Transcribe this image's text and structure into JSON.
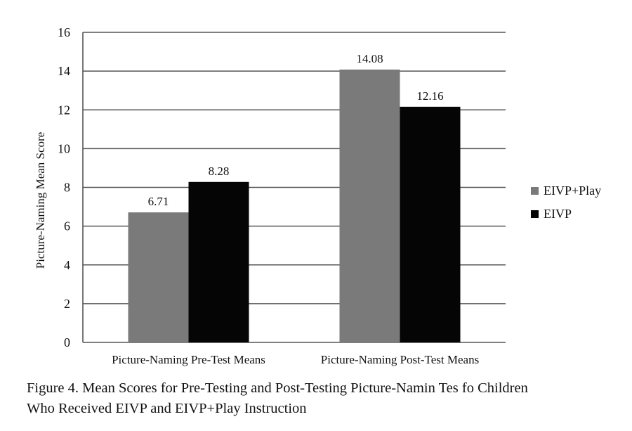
{
  "chart_data": {
    "type": "bar",
    "ylabel": "Picture-Naming Mean Score",
    "ylim": [
      0,
      16
    ],
    "yticks": [
      0,
      2,
      4,
      6,
      8,
      10,
      12,
      14,
      16
    ],
    "categories": [
      "Picture-Naming Pre-Test Means",
      "Picture-Naming Post-Test Means"
    ],
    "series": [
      {
        "name": "EIVP+Play",
        "values": [
          6.71,
          14.08
        ],
        "labels": [
          "6.71",
          "14.08"
        ],
        "color": "#7a7a7a"
      },
      {
        "name": "EIVP",
        "values": [
          8.28,
          12.16
        ],
        "labels": [
          "8.28",
          "12.16"
        ],
        "color": "#050505"
      }
    ],
    "grid": true,
    "legend_position": "right"
  },
  "caption": {
    "line1": "Figure 4. Mean Scores for Pre-Testing and Post-Testing Picture-Namin  Tes  fo  Children",
    "line2": "Who Received EIVP and EIVP+Play Instruction"
  }
}
